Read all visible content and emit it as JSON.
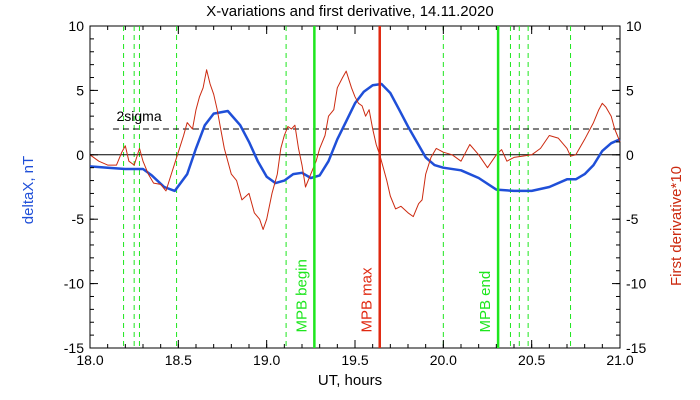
{
  "chart_data": {
    "type": "line",
    "title": "X-variations and first derivative, 14.11.2020",
    "xlabel": "UT, hours",
    "ylabel_left": "deltaX, nT",
    "ylabel_right": "First derivative*10",
    "xlim": [
      18.0,
      21.0
    ],
    "ylim": [
      -15,
      10
    ],
    "x_ticks": [
      18.0,
      18.5,
      19.0,
      19.5,
      20.0,
      20.5,
      21.0
    ],
    "x_tick_labels": [
      "18.0",
      "18.5",
      "19.0",
      "19.5",
      "20.0",
      "20.5",
      "21.0"
    ],
    "y_ticks": [
      -15,
      -10,
      -5,
      0,
      5,
      10
    ],
    "y_tick_labels": [
      "-15",
      "-10",
      "-5",
      "0",
      "5",
      "10"
    ],
    "colors": {
      "deltaX": "#1f4fd8",
      "derivative": "#cc2a10",
      "green": "#1ee61e",
      "red_marker": "#e02810",
      "axis": "#000000"
    },
    "sigma_level": 2,
    "sigma_label": "2sigma",
    "dashed_green_x": [
      18.19,
      18.25,
      18.28,
      18.49,
      19.11,
      20.0,
      20.38,
      20.43,
      20.48,
      20.72
    ],
    "markers": [
      {
        "x": 19.27,
        "label": "MPB begin",
        "color": "green"
      },
      {
        "x": 19.64,
        "label": "MPB max",
        "color": "red_marker"
      },
      {
        "x": 20.31,
        "label": "MPB end",
        "color": "green"
      }
    ],
    "series": [
      {
        "key": "deltaX",
        "x": [
          18.0,
          18.1,
          18.2,
          18.3,
          18.35,
          18.42,
          18.48,
          18.55,
          18.6,
          18.65,
          18.7,
          18.78,
          18.85,
          18.9,
          18.95,
          19.0,
          19.05,
          19.1,
          19.15,
          19.2,
          19.25,
          19.3,
          19.35,
          19.4,
          19.45,
          19.5,
          19.55,
          19.6,
          19.65,
          19.7,
          19.75,
          19.8,
          19.85,
          19.9,
          19.95,
          20.0,
          20.1,
          20.2,
          20.3,
          20.4,
          20.5,
          20.6,
          20.7,
          20.75,
          20.8,
          20.85,
          20.9,
          20.95,
          21.0
        ],
        "y": [
          -0.9,
          -1.0,
          -1.1,
          -1.1,
          -1.6,
          -2.5,
          -2.8,
          -1.5,
          0.5,
          2.3,
          3.2,
          3.4,
          2.3,
          1.0,
          -0.5,
          -1.7,
          -2.2,
          -2.0,
          -1.5,
          -1.4,
          -1.8,
          -1.6,
          -0.5,
          1.2,
          2.6,
          4.0,
          4.9,
          5.4,
          5.5,
          4.8,
          3.5,
          2.2,
          1.0,
          -0.2,
          -0.8,
          -1.0,
          -1.2,
          -1.8,
          -2.7,
          -2.8,
          -2.8,
          -2.5,
          -1.9,
          -1.9,
          -1.5,
          -0.8,
          0.3,
          0.9,
          1.2
        ]
      },
      {
        "key": "derivative",
        "x": [
          18.0,
          18.05,
          18.1,
          18.15,
          18.18,
          18.2,
          18.22,
          18.25,
          18.28,
          18.3,
          18.33,
          18.36,
          18.4,
          18.43,
          18.46,
          18.5,
          18.53,
          18.55,
          18.58,
          18.6,
          18.62,
          18.64,
          18.66,
          18.68,
          18.7,
          18.72,
          18.74,
          18.76,
          18.78,
          18.8,
          18.83,
          18.86,
          18.9,
          18.93,
          18.96,
          18.98,
          19.0,
          19.03,
          19.06,
          19.08,
          19.1,
          19.12,
          19.14,
          19.16,
          19.18,
          19.2,
          19.22,
          19.25,
          19.28,
          19.3,
          19.33,
          19.35,
          19.38,
          19.4,
          19.43,
          19.45,
          19.48,
          19.5,
          19.52,
          19.54,
          19.56,
          19.58,
          19.6,
          19.62,
          19.64,
          19.66,
          19.68,
          19.7,
          19.73,
          19.76,
          19.8,
          19.83,
          19.86,
          19.88,
          19.9,
          19.93,
          19.96,
          20.0,
          20.05,
          20.1,
          20.15,
          20.2,
          20.25,
          20.3,
          20.33,
          20.36,
          20.4,
          20.45,
          20.5,
          20.55,
          20.6,
          20.65,
          20.7,
          20.72,
          20.75,
          20.8,
          20.85,
          20.88,
          20.9,
          20.92,
          20.95,
          20.97,
          21.0
        ],
        "y": [
          0.0,
          -0.5,
          -0.8,
          -0.8,
          0.2,
          0.7,
          -0.5,
          -0.8,
          0.5,
          -0.5,
          -1.5,
          -2.2,
          -2.3,
          -2.8,
          -1.5,
          0.2,
          1.5,
          2.5,
          2.0,
          3.5,
          4.5,
          5.2,
          6.6,
          5.5,
          4.7,
          3.5,
          2.0,
          0.5,
          -0.5,
          -1.5,
          -2.0,
          -3.5,
          -3.0,
          -4.5,
          -5.0,
          -5.8,
          -5.0,
          -3.0,
          -1.5,
          0.5,
          1.5,
          2.2,
          2.0,
          2.3,
          0.5,
          -0.8,
          -2.5,
          -1.5,
          -0.5,
          0.5,
          1.5,
          3.0,
          3.5,
          5.2,
          6.0,
          6.5,
          5.2,
          4.5,
          4.0,
          3.8,
          3.0,
          3.5,
          2.0,
          0.8,
          0.0,
          -1.0,
          -2.0,
          -3.2,
          -4.2,
          -4.0,
          -4.5,
          -4.8,
          -3.8,
          -3.5,
          -1.5,
          -0.2,
          0.5,
          0.2,
          0.0,
          -0.5,
          0.8,
          0.0,
          -1.0,
          0.0,
          0.4,
          -0.5,
          -0.2,
          -0.1,
          0.0,
          0.5,
          1.5,
          1.3,
          0.5,
          -0.1,
          0.0,
          1.2,
          2.5,
          3.5,
          4.0,
          3.7,
          3.0,
          2.0,
          1.0
        ]
      }
    ]
  }
}
